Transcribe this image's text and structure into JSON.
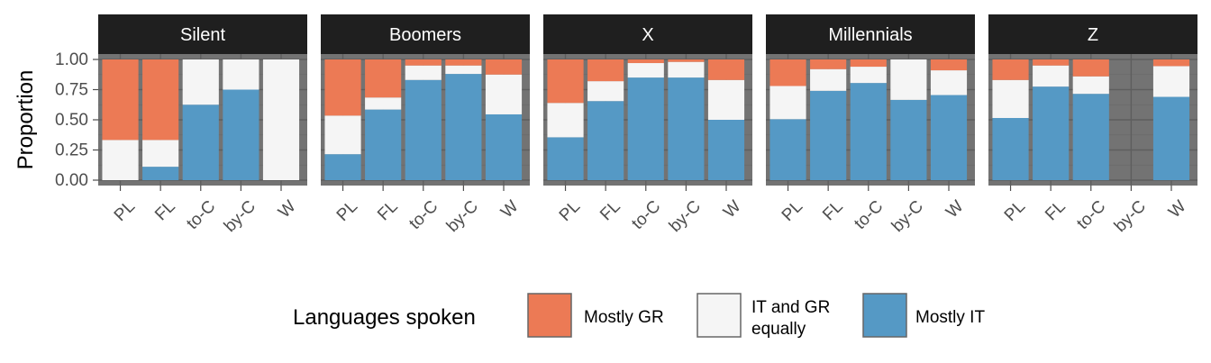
{
  "chart_data": {
    "type": "bar",
    "stacked": true,
    "ylabel": "Proportion",
    "ylim": [
      0,
      1
    ],
    "yticks": [
      "0.00",
      "0.25",
      "0.50",
      "0.75",
      "1.00"
    ],
    "categories": [
      "PL",
      "FL",
      "to-C",
      "by-C",
      "W"
    ],
    "colors": {
      "Mostly GR": "#EC7A55",
      "IT and GR equally": "#F5F5F5",
      "Mostly IT": "#5599C5",
      "panel_bg": "#737373",
      "strip_bg": "#1f1f1f"
    },
    "legend": {
      "title": "Languages spoken",
      "position": "bottom",
      "items": [
        {
          "key": "Mostly GR",
          "lines": [
            "Mostly GR"
          ]
        },
        {
          "key": "IT and GR equally",
          "lines": [
            "IT and GR",
            "equally"
          ]
        },
        {
          "key": "Mostly IT",
          "lines": [
            "Mostly IT"
          ]
        }
      ]
    },
    "panels": [
      {
        "name": "Silent",
        "bars": [
          {
            "category": "PL",
            "Mostly IT": 0.0,
            "IT and GR equally": 0.333,
            "Mostly GR": 0.667
          },
          {
            "category": "FL",
            "Mostly IT": 0.111,
            "IT and GR equally": 0.222,
            "Mostly GR": 0.667
          },
          {
            "category": "to-C",
            "Mostly IT": 0.625,
            "IT and GR equally": 0.375,
            "Mostly GR": 0.0
          },
          {
            "category": "by-C",
            "Mostly IT": 0.75,
            "IT and GR equally": 0.25,
            "Mostly GR": 0.0
          },
          {
            "category": "W",
            "Mostly IT": 0.0,
            "IT and GR equally": 1.0,
            "Mostly GR": 0.0
          }
        ]
      },
      {
        "name": "Boomers",
        "bars": [
          {
            "category": "PL",
            "Mostly IT": 0.215,
            "IT and GR equally": 0.32,
            "Mostly GR": 0.465
          },
          {
            "category": "FL",
            "Mostly IT": 0.585,
            "IT and GR equally": 0.1,
            "Mostly GR": 0.315
          },
          {
            "category": "to-C",
            "Mostly IT": 0.83,
            "IT and GR equally": 0.12,
            "Mostly GR": 0.05
          },
          {
            "category": "by-C",
            "Mostly IT": 0.88,
            "IT and GR equally": 0.07,
            "Mostly GR": 0.05
          },
          {
            "category": "W",
            "Mostly IT": 0.545,
            "IT and GR equally": 0.33,
            "Mostly GR": 0.125
          }
        ]
      },
      {
        "name": "X",
        "bars": [
          {
            "category": "PL",
            "Mostly IT": 0.355,
            "IT and GR equally": 0.285,
            "Mostly GR": 0.36
          },
          {
            "category": "FL",
            "Mostly IT": 0.655,
            "IT and GR equally": 0.165,
            "Mostly GR": 0.18
          },
          {
            "category": "to-C",
            "Mostly IT": 0.85,
            "IT and GR equally": 0.12,
            "Mostly GR": 0.03
          },
          {
            "category": "by-C",
            "Mostly IT": 0.85,
            "IT and GR equally": 0.13,
            "Mostly GR": 0.02
          },
          {
            "category": "W",
            "Mostly IT": 0.5,
            "IT and GR equally": 0.33,
            "Mostly GR": 0.17
          }
        ]
      },
      {
        "name": "Millennials",
        "bars": [
          {
            "category": "PL",
            "Mostly IT": 0.505,
            "IT and GR equally": 0.275,
            "Mostly GR": 0.22
          },
          {
            "category": "FL",
            "Mostly IT": 0.74,
            "IT and GR equally": 0.18,
            "Mostly GR": 0.08
          },
          {
            "category": "to-C",
            "Mostly IT": 0.805,
            "IT and GR equally": 0.135,
            "Mostly GR": 0.06
          },
          {
            "category": "by-C",
            "Mostly IT": 0.665,
            "IT and GR equally": 0.335,
            "Mostly GR": 0.0
          },
          {
            "category": "W",
            "Mostly IT": 0.705,
            "IT and GR equally": 0.205,
            "Mostly GR": 0.09
          }
        ]
      },
      {
        "name": "Z",
        "bars": [
          {
            "category": "PL",
            "Mostly IT": 0.515,
            "IT and GR equally": 0.315,
            "Mostly GR": 0.17
          },
          {
            "category": "FL",
            "Mostly IT": 0.775,
            "IT and GR equally": 0.175,
            "Mostly GR": 0.05
          },
          {
            "category": "to-C",
            "Mostly IT": 0.715,
            "IT and GR equally": 0.145,
            "Mostly GR": 0.14
          },
          {
            "category": "W",
            "Mostly IT": 0.69,
            "IT and GR equally": 0.255,
            "Mostly GR": 0.055
          }
        ]
      }
    ]
  }
}
